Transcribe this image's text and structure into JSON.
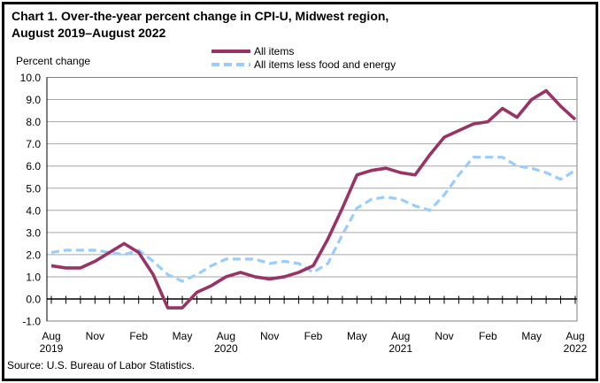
{
  "title": {
    "line1": "Chart 1. Over-the-year percent change in CPI-U, Midwest region,",
    "line2": "August 2019–August 2022"
  },
  "y_axis_label": "Percent change",
  "source": "Source: U.S. Bureau of Labor Statistics.",
  "legend": {
    "items": [
      {
        "label": "All items"
      },
      {
        "label": "All items less food and energy"
      }
    ]
  },
  "colors": {
    "all_items_line": "#993366",
    "core_line": "#99CCFF",
    "gridline": "#A6A6A6",
    "plot_border": "#808080",
    "axis": "#000000",
    "text": "#000000",
    "background": "#FFFFFF"
  },
  "chart_data": {
    "type": "line",
    "title": "Chart 1. Over-the-year percent change in CPI-U, Midwest region, August 2019–August 2022",
    "xlabel": "",
    "ylabel": "Percent change",
    "ylim": [
      -1.0,
      10.0
    ],
    "grid": true,
    "legend_position": "top-center",
    "x": [
      "Aug 2019",
      "Sep 2019",
      "Oct 2019",
      "Nov 2019",
      "Dec 2019",
      "Jan 2020",
      "Feb 2020",
      "Mar 2020",
      "Apr 2020",
      "May 2020",
      "Jun 2020",
      "Jul 2020",
      "Aug 2020",
      "Sep 2020",
      "Oct 2020",
      "Nov 2020",
      "Dec 2020",
      "Jan 2021",
      "Feb 2021",
      "Mar 2021",
      "Apr 2021",
      "May 2021",
      "Jun 2021",
      "Jul 2021",
      "Aug 2021",
      "Sep 2021",
      "Oct 2021",
      "Nov 2021",
      "Dec 2021",
      "Jan 2022",
      "Feb 2022",
      "Mar 2022",
      "Apr 2022",
      "May 2022",
      "Jun 2022",
      "Jul 2022",
      "Aug 2022"
    ],
    "series": [
      {
        "name": "All items",
        "color": "#993366",
        "dash": null,
        "values": [
          1.5,
          1.4,
          1.4,
          1.7,
          2.1,
          2.5,
          2.1,
          1.1,
          -0.4,
          -0.4,
          0.3,
          0.6,
          1.0,
          1.2,
          1.0,
          0.9,
          1.0,
          1.2,
          1.5,
          2.7,
          4.1,
          5.6,
          5.8,
          5.9,
          5.7,
          5.6,
          6.5,
          7.3,
          7.6,
          7.9,
          8.0,
          8.6,
          8.2,
          9.0,
          9.4,
          8.7,
          8.1
        ]
      },
      {
        "name": "All items less food and energy",
        "color": "#99CCFF",
        "dash": "9 5",
        "values": [
          2.1,
          2.2,
          2.2,
          2.2,
          2.1,
          2.0,
          2.2,
          1.7,
          1.1,
          0.8,
          1.1,
          1.5,
          1.8,
          1.8,
          1.8,
          1.6,
          1.7,
          1.6,
          1.2,
          1.6,
          2.9,
          4.1,
          4.5,
          4.6,
          4.5,
          4.2,
          4.0,
          4.7,
          5.6,
          6.4,
          6.4,
          6.4,
          6.0,
          5.9,
          5.7,
          5.4,
          5.8
        ]
      }
    ],
    "y_ticks": [
      "10.0",
      "9.0",
      "8.0",
      "7.0",
      "6.0",
      "5.0",
      "4.0",
      "3.0",
      "2.0",
      "1.0",
      "0.0",
      "-1.0"
    ],
    "x_ticks": [
      {
        "index": 0,
        "label": "Aug",
        "year": "2019"
      },
      {
        "index": 3,
        "label": "Nov"
      },
      {
        "index": 6,
        "label": "Feb"
      },
      {
        "index": 9,
        "label": "May"
      },
      {
        "index": 12,
        "label": "Aug",
        "year": "2020"
      },
      {
        "index": 15,
        "label": "Nov"
      },
      {
        "index": 18,
        "label": "Feb"
      },
      {
        "index": 21,
        "label": "May"
      },
      {
        "index": 24,
        "label": "Aug",
        "year": "2021"
      },
      {
        "index": 27,
        "label": "Nov"
      },
      {
        "index": 30,
        "label": "Feb"
      },
      {
        "index": 33,
        "label": "May"
      },
      {
        "index": 36,
        "label": "Aug",
        "year": "2022"
      }
    ]
  }
}
